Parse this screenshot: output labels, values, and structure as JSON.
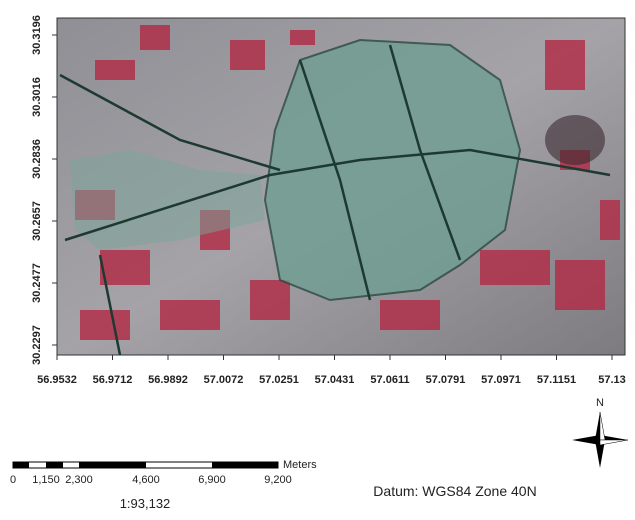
{
  "map": {
    "x_labels": [
      "56.9532",
      "56.9712",
      "56.9892",
      "57.0072",
      "57.0251",
      "57.0431",
      "57.0611",
      "57.0791",
      "57.0971",
      "57.1151",
      "57.13"
    ],
    "y_labels": [
      "30.3196",
      "30.3016",
      "30.2836",
      "30.2657",
      "30.2477",
      "30.2297"
    ],
    "scale_bar": {
      "unit": "Meters",
      "labels": [
        "0",
        "1,150",
        "2,300",
        "4,600",
        "6,900",
        "9,200"
      ]
    },
    "scale": "1:93,132",
    "datum": "Datum: WGS84 Zone 40N",
    "north": "N"
  }
}
